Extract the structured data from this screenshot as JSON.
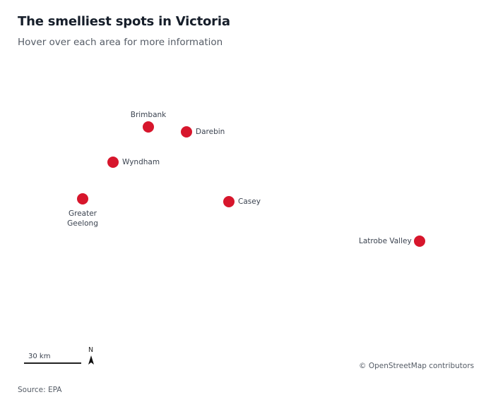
{
  "header": {
    "title": "The smelliest spots in Victoria",
    "subtitle": "Hover over each area for more information"
  },
  "map": {
    "marker_color": "#d7162c",
    "places": [
      {
        "id": "brimbank",
        "name": "Brimbank"
      },
      {
        "id": "darebin",
        "name": "Darebin"
      },
      {
        "id": "wyndham",
        "name": "Wyndham"
      },
      {
        "id": "greater-geelong",
        "name": "Greater Geelong"
      },
      {
        "id": "casey",
        "name": "Casey"
      },
      {
        "id": "latrobe-valley",
        "name": "Latrobe Valley"
      }
    ],
    "scale_label": "30 km",
    "north_label": "N",
    "attribution": "© OpenStreetMap contributors"
  },
  "footer": {
    "source": "Source: EPA"
  }
}
